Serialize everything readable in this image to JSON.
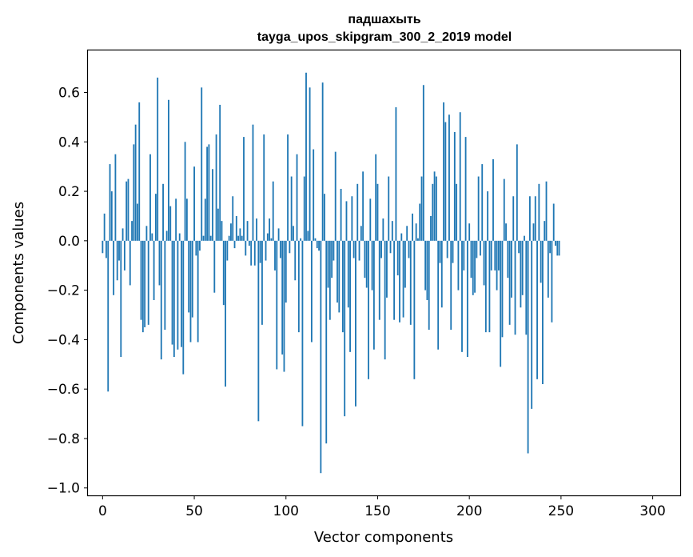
{
  "chart_data": {
    "type": "bar",
    "title_line1": "падшахыть",
    "title_line2": "tayga_upos_skipgram_300_2_2019 model",
    "xlabel": "Vector components",
    "ylabel": "Components values",
    "xlim": [
      -8,
      315
    ],
    "ylim": [
      -1.03,
      0.77
    ],
    "x_ticks": [
      0,
      50,
      100,
      150,
      200,
      250,
      300
    ],
    "y_ticks": [
      -1.0,
      -0.8,
      -0.6,
      -0.4,
      -0.2,
      0.0,
      0.2,
      0.4,
      0.6
    ],
    "x_tick_labels": [
      "0",
      "50",
      "100",
      "150",
      "200",
      "250",
      "300"
    ],
    "y_tick_labels": [
      "−1.0",
      "−0.8",
      "−0.6",
      "−0.4",
      "−0.2",
      "0.0",
      "0.2",
      "0.4",
      "0.6"
    ],
    "bar_color": "#1f77b4",
    "values": [
      -0.05,
      0.11,
      -0.07,
      -0.61,
      0.31,
      0.2,
      -0.22,
      0.35,
      -0.16,
      -0.08,
      -0.47,
      0.05,
      -0.12,
      0.24,
      0.25,
      -0.18,
      0.08,
      0.39,
      0.47,
      0.15,
      0.56,
      -0.32,
      -0.37,
      -0.35,
      0.06,
      -0.34,
      0.35,
      0.03,
      -0.24,
      0.19,
      0.66,
      -0.18,
      -0.48,
      0.23,
      -0.36,
      0.04,
      0.57,
      0.14,
      -0.42,
      -0.47,
      0.17,
      -0.44,
      0.03,
      -0.43,
      -0.54,
      0.4,
      0.17,
      -0.29,
      -0.41,
      -0.31,
      0.3,
      -0.06,
      -0.41,
      -0.04,
      0.62,
      0.02,
      0.17,
      0.38,
      0.39,
      0.02,
      0.29,
      -0.21,
      0.43,
      0.13,
      0.55,
      0.08,
      -0.26,
      -0.59,
      -0.08,
      0.02,
      0.07,
      0.18,
      -0.03,
      0.1,
      0.02,
      0.05,
      0.02,
      0.42,
      -0.06,
      0.08,
      -0.02,
      -0.1,
      0.47,
      -0.1,
      0.09,
      -0.73,
      -0.09,
      -0.34,
      0.43,
      -0.08,
      0.03,
      0.09,
      0.01,
      0.24,
      -0.12,
      -0.52,
      0.05,
      -0.07,
      -0.46,
      -0.53,
      -0.25,
      0.43,
      -0.05,
      0.26,
      0.06,
      -0.16,
      0.35,
      -0.37,
      0.01,
      -0.75,
      0.26,
      0.68,
      0.04,
      0.62,
      -0.41,
      0.37,
      0.01,
      -0.03,
      -0.04,
      -0.94,
      0.64,
      0.19,
      -0.82,
      -0.19,
      -0.32,
      -0.15,
      -0.08,
      0.36,
      -0.25,
      -0.29,
      0.21,
      -0.37,
      -0.71,
      0.16,
      -0.27,
      -0.45,
      0.18,
      -0.07,
      -0.67,
      0.23,
      -0.08,
      0.06,
      0.28,
      -0.15,
      -0.19,
      -0.56,
      0.17,
      -0.2,
      -0.44,
      0.35,
      0.23,
      -0.32,
      -0.07,
      0.09,
      -0.48,
      -0.23,
      0.26,
      -0.05,
      0.08,
      -0.32,
      0.54,
      -0.14,
      -0.33,
      0.03,
      -0.31,
      -0.19,
      0.06,
      -0.07,
      -0.34,
      0.11,
      -0.56,
      0.07,
      0.01,
      0.15,
      0.26,
      0.63,
      -0.2,
      -0.24,
      -0.36,
      0.1,
      0.23,
      0.28,
      0.26,
      -0.44,
      -0.09,
      -0.27,
      0.56,
      0.48,
      -0.07,
      0.51,
      -0.36,
      -0.09,
      0.44,
      0.23,
      -0.2,
      0.52,
      -0.45,
      -0.12,
      0.42,
      -0.47,
      0.07,
      -0.15,
      -0.22,
      -0.21,
      -0.07,
      0.26,
      -0.06,
      0.31,
      -0.18,
      -0.37,
      0.2,
      -0.37,
      -0.12,
      0.33,
      -0.12,
      -0.2,
      -0.12,
      -0.51,
      -0.39,
      0.25,
      0.07,
      -0.15,
      -0.34,
      -0.23,
      0.18,
      -0.38,
      0.39,
      -0.05,
      -0.27,
      -0.22,
      0.02,
      -0.38,
      -0.86,
      0.18,
      -0.68,
      0.07,
      0.18,
      -0.56,
      0.23,
      -0.17,
      -0.58,
      0.08,
      0.24,
      -0.23,
      -0.05,
      -0.33,
      0.15,
      -0.02,
      -0.06,
      -0.06
    ]
  }
}
